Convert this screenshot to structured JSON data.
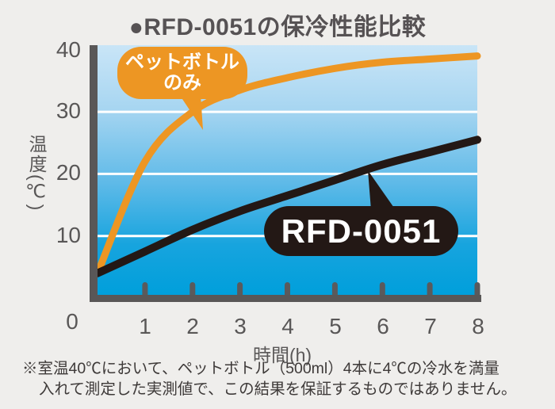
{
  "title": "●RFD-0051の保冷性能比較",
  "chart_data": {
    "type": "line",
    "title": "RFD-0051の保冷性能比較",
    "x": [
      0,
      1,
      2,
      3,
      4,
      5,
      6,
      7,
      8
    ],
    "series": [
      {
        "name": "ペットボトルのみ",
        "color": "#ED9623",
        "stroke_width": 9,
        "values": [
          4,
          22,
          30,
          33.5,
          35.5,
          37,
          38,
          38.5,
          39
        ]
      },
      {
        "name": "RFD-0051",
        "color": "#231815",
        "stroke_width": 10,
        "values": [
          4,
          7.5,
          11,
          14,
          16.5,
          19,
          21.5,
          23.5,
          25.5
        ]
      }
    ],
    "xlabel": "時間(h)",
    "ylabel": "温度(℃)",
    "xlim": [
      0,
      8
    ],
    "ylim": [
      0,
      40
    ],
    "gridline_temps": [
      10,
      20,
      30
    ],
    "gridline_color": "#FFFFFF",
    "legend_position": "speech-bubbles-on-plot",
    "plot_background": "vertical blue gradient, light at top to saturated cyan-blue at bottom"
  },
  "y_axis": {
    "label": "温度(℃)",
    "ticks": [
      "40",
      "30",
      "20",
      "10"
    ]
  },
  "x_axis": {
    "label": "時間(h)",
    "origin": "0",
    "ticks": [
      "1",
      "2",
      "3",
      "4",
      "5",
      "6",
      "7",
      "8"
    ]
  },
  "annotations": {
    "orange_bubble_line1": "ペットボトル",
    "orange_bubble_line2": "のみ",
    "black_bubble": "RFD-0051"
  },
  "footnote": {
    "line1": "※室温40℃において、ペットボトル（500ml）4本に4℃の冷水を満量",
    "line2": "入れて測定した実測値で、この結果を保証するものではありません。"
  },
  "colors": {
    "background": "#EFEEEC",
    "title_text": "#565254",
    "axis": "#595757",
    "axis_labels": "#595757",
    "gridlines": "#FFFFFF",
    "series_pet_bottle": "#ED9623",
    "series_rfd0051": "#231815",
    "bubble_text": "#FFFFFF",
    "footnote_text": "#3E3A39"
  }
}
